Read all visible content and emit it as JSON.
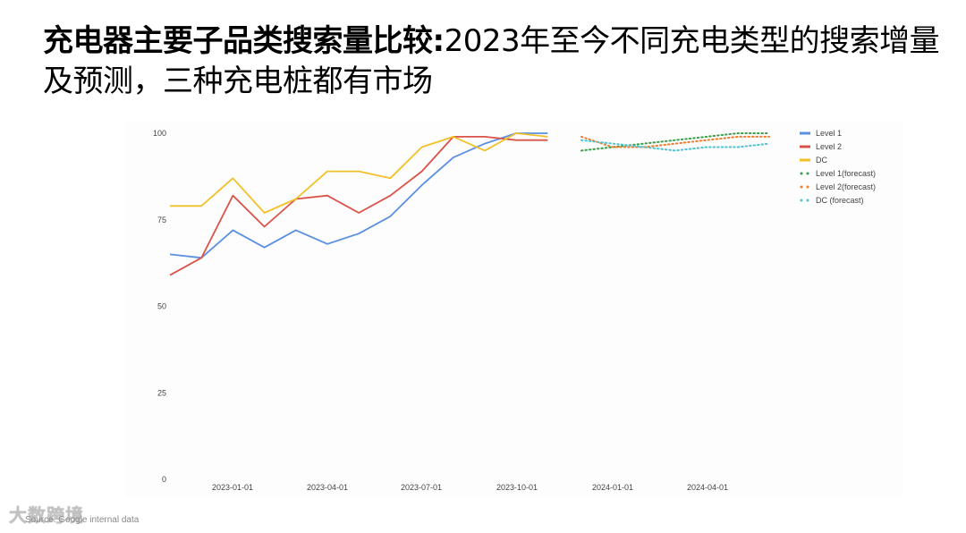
{
  "title": {
    "bold_part": "充电器主要子品类搜索量比较:",
    "normal_part": "2023年至今不同充电类型的搜索增量及预测，三种充电桩都有市场"
  },
  "source": "Source: Google internal data",
  "watermark": "大数跨境",
  "chart_data": {
    "type": "line",
    "title": "",
    "xlabel": "",
    "ylabel": "",
    "ylim": [
      0,
      100
    ],
    "y_ticks": [
      0,
      25,
      50,
      75,
      100
    ],
    "x_tick_labels": [
      "2023-01-01",
      "2023-04-01",
      "2023-07-01",
      "2023-10-01",
      "2024-01-01",
      "2024-04-01"
    ],
    "grid": false,
    "legend_position": "right",
    "x": [
      "2022-11",
      "2022-12",
      "2023-01",
      "2023-02",
      "2023-03",
      "2023-04",
      "2023-05",
      "2023-06",
      "2023-07",
      "2023-08",
      "2023-09",
      "2023-10",
      "2023-11"
    ],
    "forecast_x": [
      "2023-12",
      "2024-01",
      "2024-02",
      "2024-03",
      "2024-04",
      "2024-05",
      "2024-06"
    ],
    "series": [
      {
        "name": "Level 1",
        "color": "#5b8fe0",
        "style": "solid",
        "values": [
          65,
          64,
          72,
          67,
          72,
          68,
          71,
          76,
          85,
          93,
          97,
          100,
          100
        ]
      },
      {
        "name": "Level 2",
        "color": "#d9534a",
        "style": "solid",
        "values": [
          59,
          64,
          82,
          73,
          81,
          82,
          77,
          82,
          89,
          99,
          99,
          98,
          98
        ]
      },
      {
        "name": "DC",
        "color": "#f2c029",
        "style": "solid",
        "values": [
          79,
          79,
          87,
          77,
          81,
          89,
          89,
          87,
          96,
          99,
          95,
          100,
          99
        ]
      },
      {
        "name": "Level 1(forecast)",
        "color": "#3c9e4a",
        "style": "dotted",
        "values": [
          95,
          96,
          97,
          98,
          99,
          100,
          100
        ]
      },
      {
        "name": "Level 2(forecast)",
        "color": "#ef7d2f",
        "style": "dotted",
        "values": [
          99,
          96,
          96,
          97,
          98,
          99,
          99
        ]
      },
      {
        "name": "DC (forecast)",
        "color": "#4fc3d0",
        "style": "dotted",
        "values": [
          98,
          97,
          96,
          95,
          96,
          96,
          97
        ]
      }
    ]
  }
}
